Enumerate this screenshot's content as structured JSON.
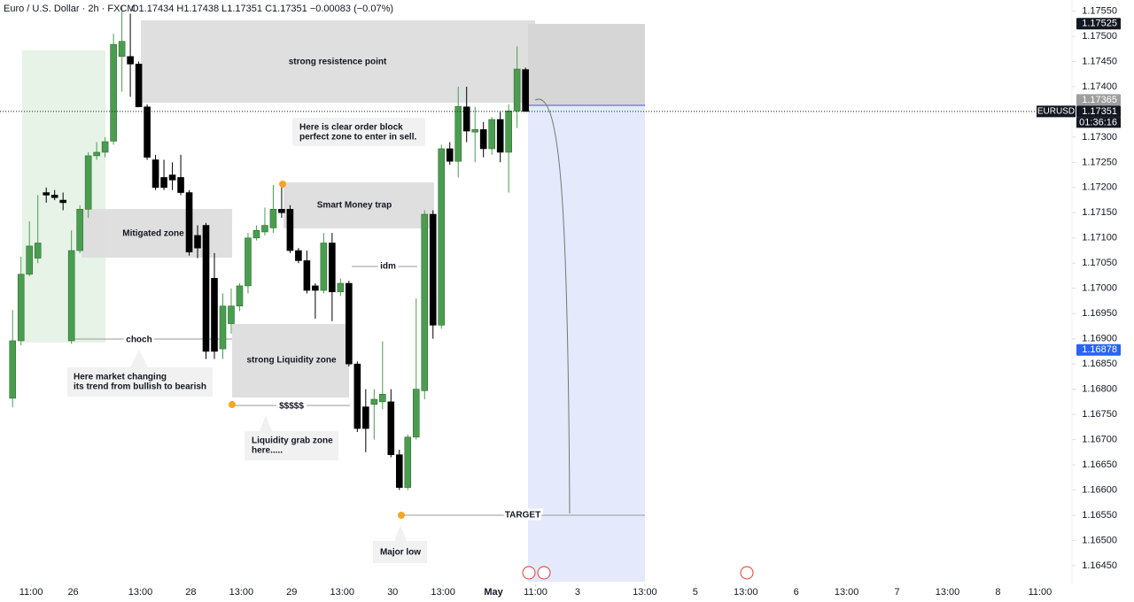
{
  "chart_data": {
    "type": "candlestick",
    "title": "Euro / U.S. Dollar · 2h · FXCM",
    "ohlc_header": "O1.17434 H1.17438 L1.17351 C1.17351 −0.00083 (−0.07%)",
    "up_color": "#4a9d4f",
    "down_color": "#000000",
    "open": [
      1.16782,
      1.16896,
      1.17028,
      1.1706,
      1.1719,
      1.17185,
      1.17175,
      1.16896,
      1.17075,
      1.17157,
      1.17263,
      1.1727,
      1.17292,
      1.1746,
      1.1746,
      1.17445,
      1.1736,
      1.17255,
      1.1722,
      1.17225,
      1.1722,
      1.1719,
      1.17105,
      1.17125,
      1.1702,
      1.1688,
      1.1693,
      1.16965,
      1.17005,
      1.171,
      1.17112,
      1.1712,
      1.17157,
      1.17157,
      1.17075,
      1.17055,
      1.17005,
      1.16996,
      1.1709,
      1.16993,
      1.1701,
      1.1685,
      1.16765,
      1.1677,
      1.16775,
      1.16775,
      1.1667,
      1.16605,
      1.16705,
      1.16797,
      1.17147,
      1.16927,
      1.17277,
      1.17252,
      1.1736,
      1.1731,
      1.17315,
      1.17277,
      1.17335,
      1.1727,
      1.17352,
      1.17434
    ],
    "high": [
      1.16957,
      1.17063,
      1.17133,
      1.17185,
      1.172,
      1.17195,
      1.1719,
      1.17115,
      1.17165,
      1.1727,
      1.1729,
      1.173,
      1.17505,
      1.1756,
      1.17545,
      1.1745,
      1.17365,
      1.17265,
      1.17255,
      1.1725,
      1.17265,
      1.17195,
      1.17125,
      1.1713,
      1.1707,
      1.1699,
      1.17,
      1.1701,
      1.1711,
      1.17125,
      1.1716,
      1.17205,
      1.172,
      1.17165,
      1.1708,
      1.17075,
      1.1701,
      1.1711,
      1.1711,
      1.1702,
      1.17015,
      1.16855,
      1.168,
      1.168,
      1.16895,
      1.168,
      1.1668,
      1.1671,
      1.1698,
      1.17155,
      1.17155,
      1.17285,
      1.1729,
      1.174,
      1.174,
      1.1736,
      1.1733,
      1.1734,
      1.1735,
      1.17365,
      1.1748,
      1.17438
    ],
    "low": [
      1.16764,
      1.16887,
      1.17024,
      1.1705,
      1.1717,
      1.17175,
      1.17155,
      1.1689,
      1.1707,
      1.1714,
      1.17255,
      1.1726,
      1.17285,
      1.1739,
      1.1738,
      1.1736,
      1.17255,
      1.17195,
      1.17195,
      1.17195,
      1.17185,
      1.17065,
      1.1706,
      1.1686,
      1.1686,
      1.1686,
      1.1691,
      1.16955,
      1.1699,
      1.17095,
      1.17105,
      1.1711,
      1.1714,
      1.1707,
      1.1705,
      1.1699,
      1.1694,
      1.1699,
      1.16935,
      1.16985,
      1.16845,
      1.16715,
      1.16675,
      1.167,
      1.1676,
      1.16665,
      1.166,
      1.166,
      1.167,
      1.1678,
      1.169,
      1.1692,
      1.17245,
      1.1722,
      1.1729,
      1.1725,
      1.1726,
      1.17265,
      1.1725,
      1.1719,
      1.17318,
      1.17351
    ],
    "close": [
      1.16896,
      1.17028,
      1.17084,
      1.1709,
      1.17185,
      1.1718,
      1.1717,
      1.17075,
      1.17157,
      1.17263,
      1.1727,
      1.17291,
      1.17484,
      1.1749,
      1.17445,
      1.1736,
      1.1726,
      1.172,
      1.172,
      1.17215,
      1.1719,
      1.17072,
      1.1708,
      1.16875,
      1.16875,
      1.16965,
      1.16965,
      1.17005,
      1.171,
      1.17115,
      1.17125,
      1.17157,
      1.1715,
      1.17075,
      1.17055,
      1.16996,
      1.16996,
      1.1709,
      1.16993,
      1.1701,
      1.1685,
      1.16722,
      1.16722,
      1.1678,
      1.1679,
      1.1667,
      1.16605,
      1.16705,
      1.168,
      1.17147,
      1.16927,
      1.17277,
      1.17252,
      1.17361,
      1.17312,
      1.17315,
      1.17277,
      1.17335,
      1.1727,
      1.17352,
      1.17435,
      1.17351
    ],
    "xlim": [
      -1.5,
      126
    ],
    "xticks": [
      {
        "value": 2.2,
        "label": "11:00"
      },
      {
        "value": 7.2,
        "label": "26"
      },
      {
        "value": 15.2,
        "label": "13:00"
      },
      {
        "value": 21.2,
        "label": "28"
      },
      {
        "value": 27.2,
        "label": "13:00"
      },
      {
        "value": 33.2,
        "label": "29"
      },
      {
        "value": 39.2,
        "label": "13:00"
      },
      {
        "value": 45.2,
        "label": "30"
      },
      {
        "value": 51.2,
        "label": "13:00"
      },
      {
        "value": 57.2,
        "label": "May"
      },
      {
        "value": 62.2,
        "label": "11:00"
      },
      {
        "value": 67.2,
        "label": "3"
      },
      {
        "value": 75.2,
        "label": "13:00"
      },
      {
        "value": 81.2,
        "label": "5"
      },
      {
        "value": 87.2,
        "label": "13:00"
      },
      {
        "value": 93.2,
        "label": "6"
      },
      {
        "value": 99.2,
        "label": "13:00"
      },
      {
        "value": 105.2,
        "label": "7"
      },
      {
        "value": 111.2,
        "label": "13:00"
      },
      {
        "value": 117.2,
        "label": "8"
      },
      {
        "value": 122.2,
        "label": "11:00"
      }
    ],
    "ylim": [
      1.16413,
      1.17572
    ],
    "yticks": [
      {
        "value": 1.1645,
        "label": "1.16450"
      },
      {
        "value": 1.165,
        "label": "1.16500"
      },
      {
        "value": 1.1655,
        "label": "1.16550"
      },
      {
        "value": 1.166,
        "label": "1.16600"
      },
      {
        "value": 1.1665,
        "label": "1.16650"
      },
      {
        "value": 1.167,
        "label": "1.16700"
      },
      {
        "value": 1.1675,
        "label": "1.16750"
      },
      {
        "value": 1.168,
        "label": "1.16800"
      },
      {
        "value": 1.1685,
        "label": "1.16850"
      },
      {
        "value": 1.169,
        "label": "1.16900"
      },
      {
        "value": 1.1695,
        "label": "1.16950"
      },
      {
        "value": 1.17,
        "label": "1.17000"
      },
      {
        "value": 1.1705,
        "label": "1.17050"
      },
      {
        "value": 1.171,
        "label": "1.17100"
      },
      {
        "value": 1.1715,
        "label": "1.17150"
      },
      {
        "value": 1.172,
        "label": "1.17200"
      },
      {
        "value": 1.1725,
        "label": "1.17250"
      },
      {
        "value": 1.173,
        "label": "1.17300"
      },
      {
        "value": 1.1735,
        "label": "1.17350"
      },
      {
        "value": 1.174,
        "label": "1.17400"
      },
      {
        "value": 1.1745,
        "label": "1.17450"
      },
      {
        "value": 1.175,
        "label": "1.17500"
      },
      {
        "value": 1.1755,
        "label": "1.17550"
      }
    ],
    "price_labels": [
      {
        "value": 1.17525,
        "label": "1.17525",
        "color": "#131722"
      },
      {
        "value": 1.17365,
        "label": "1.17365",
        "color": "#9e9e9e"
      },
      {
        "value": 1.17351,
        "label": "1.17351",
        "color": "#131722"
      },
      {
        "value": 1.16878,
        "label": "1.16878",
        "color": "#2962ff"
      }
    ],
    "symbol": "EURUSD",
    "countdown": "01:36:16",
    "annotations": {
      "resistance": "strong resistence point",
      "order_block": [
        "Here is clear order block",
        "perfect zone to enter in sell."
      ],
      "mitigated": "Mitigated zone",
      "smt": "Smart Money trap",
      "idm": "idm",
      "choch": "choch",
      "trend_change": [
        "Here market changing",
        "its trend from bullish to bearish"
      ],
      "liquidity_zone": "strong Liquidity zone",
      "dollars": "$$$$$",
      "grab": [
        "Liquidity grab zone",
        "here....."
      ],
      "target": "TARGET",
      "major_low": "Major low"
    }
  }
}
